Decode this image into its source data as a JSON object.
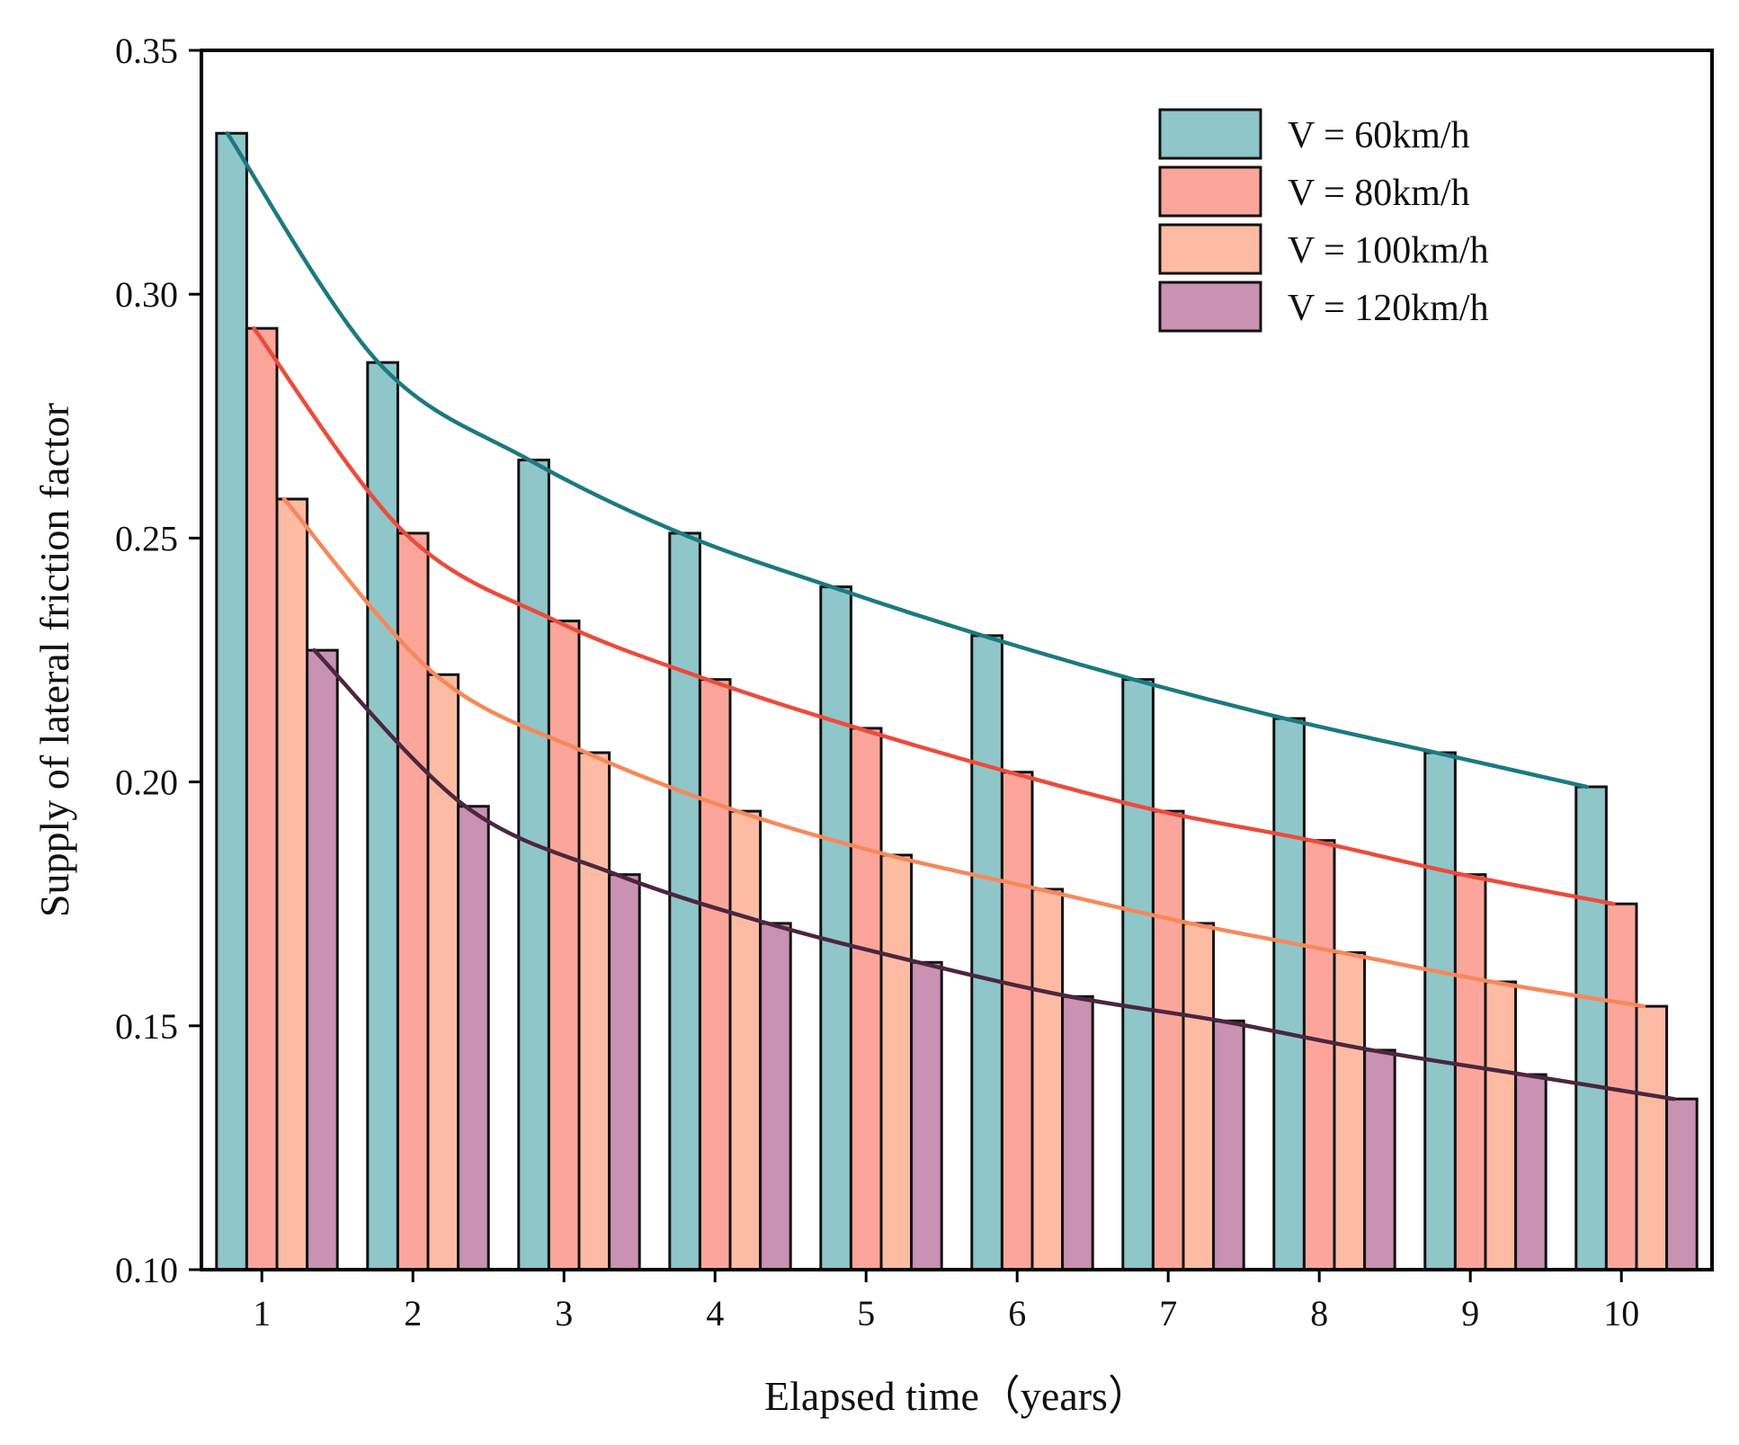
{
  "chart_data": {
    "type": "bar",
    "title": "",
    "xlabel": "Elapsed time（years）",
    "ylabel": "Supply of lateral friction factor",
    "categories": [
      "1",
      "2",
      "3",
      "4",
      "5",
      "6",
      "7",
      "8",
      "9",
      "10"
    ],
    "ylim": [
      0.1,
      0.35
    ],
    "yticks": [
      "0.10",
      "0.15",
      "0.20",
      "0.25",
      "0.30",
      "0.35"
    ],
    "legend_position": "top-right",
    "grid": false,
    "trend_lines": true,
    "series": [
      {
        "name": "V = 60km/h",
        "color": "#8fc6c9",
        "line_color": "#1b7a80",
        "values": [
          0.333,
          0.286,
          0.266,
          0.251,
          0.24,
          0.23,
          0.221,
          0.213,
          0.206,
          0.199
        ]
      },
      {
        "name": "V = 80km/h",
        "color": "#fca69b",
        "line_color": "#ec4b3c",
        "values": [
          0.293,
          0.251,
          0.233,
          0.221,
          0.211,
          0.202,
          0.194,
          0.188,
          0.181,
          0.175
        ]
      },
      {
        "name": "V = 100km/h",
        "color": "#fdbba3",
        "line_color": "#f7885a",
        "values": [
          0.258,
          0.222,
          0.206,
          0.194,
          0.185,
          0.178,
          0.171,
          0.165,
          0.159,
          0.154
        ]
      },
      {
        "name": "V = 120km/h",
        "color": "#c991b2",
        "line_color": "#4c2640",
        "values": [
          0.227,
          0.195,
          0.181,
          0.171,
          0.163,
          0.156,
          0.151,
          0.145,
          0.14,
          0.135
        ]
      }
    ]
  }
}
